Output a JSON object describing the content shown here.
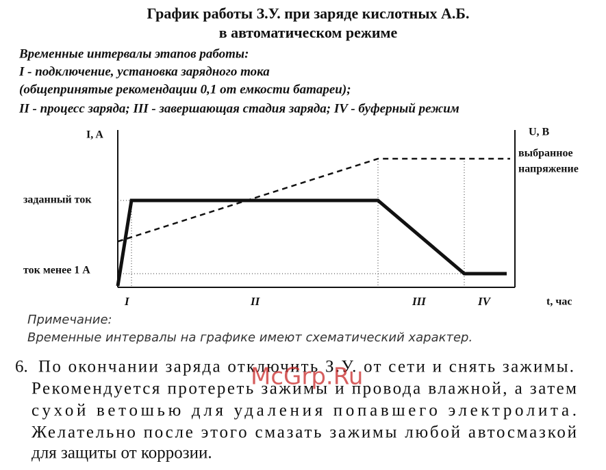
{
  "title": [
    "График работы З.У. при заряде кислотных А.Б.",
    "в автоматическом режиме"
  ],
  "intervals": [
    "Временные интервалы этапов работы:",
    "I - подключение, установка зарядного тока",
    "(общепринятые рекомендации 0,1 от емкости батареи);",
    "II - процесс заряда; III - завершающая стадия заряда; IV - буферный режим"
  ],
  "diagram": {
    "y_axis_label": "I, A",
    "y2_axis_label": "U, B",
    "voltage_label": [
      "выбранное",
      "напряжение"
    ],
    "current_labels": [
      "заданный ток",
      "ток менее 1 А"
    ],
    "stages": [
      "I",
      "II",
      "III",
      "IV"
    ],
    "x_axis_label": "t, час"
  },
  "note": [
    "Примечание:",
    "Временные интервалы на графике имеют схематический характер."
  ],
  "step": {
    "number": "6.",
    "lines": [
      "По окончании заряда отключить З.У. от сети и снять зажимы.",
      "Рекомендуется протереть зажимы и  провода влажной, а затем",
      "сухой ветошью для удаления попавшего электролита.",
      "Желательно после этого смазать зажимы любой автосмазкой",
      "для защиты от коррозии."
    ]
  },
  "watermark": "McGrp.Ru"
}
